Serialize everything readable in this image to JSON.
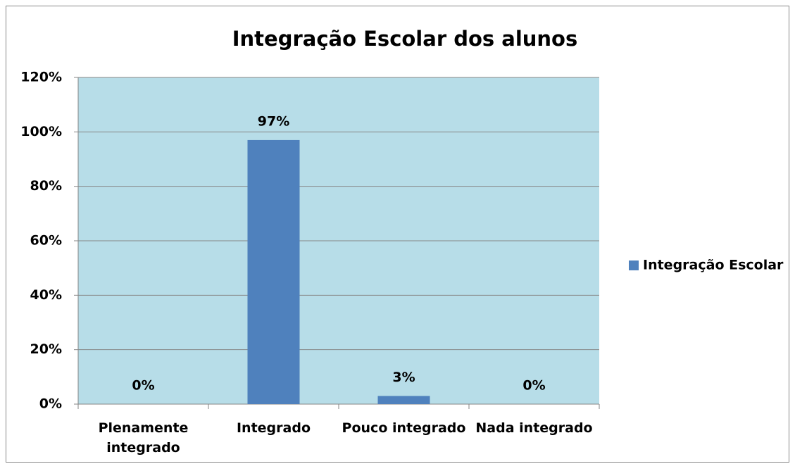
{
  "chart_data": {
    "type": "bar",
    "title": "Integração Escolar dos alunos",
    "categories": [
      "Plenamente integrado",
      "Integrado",
      "Pouco integrado",
      "Nada integrado"
    ],
    "series": [
      {
        "name": "Integração Escolar",
        "color": "#4f81bd",
        "values": [
          0,
          97,
          3,
          0
        ],
        "value_labels": [
          "0%",
          "97%",
          "3%",
          "0%"
        ]
      }
    ],
    "ylim": [
      0,
      120
    ],
    "yticks": [
      {
        "value": 0,
        "label": "0%"
      },
      {
        "value": 20,
        "label": "20%"
      },
      {
        "value": 40,
        "label": "40%"
      },
      {
        "value": 60,
        "label": "60%"
      },
      {
        "value": 80,
        "label": "80%"
      },
      {
        "value": 100,
        "label": "100%"
      },
      {
        "value": 120,
        "label": "120%"
      }
    ],
    "grid": true,
    "legend": "right",
    "plot_background": "#b7dde8"
  }
}
